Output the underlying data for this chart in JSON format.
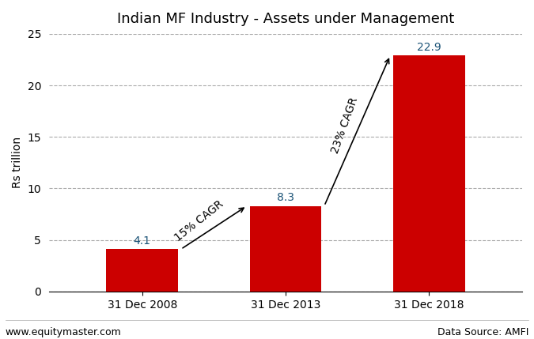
{
  "title": "Indian MF Industry - Assets under Management",
  "categories": [
    "31 Dec 2008",
    "31 Dec 2013",
    "31 Dec 2018"
  ],
  "values": [
    4.1,
    8.3,
    22.9
  ],
  "bar_color": "#cc0000",
  "ylabel": "Rs trillion",
  "ylim": [
    0,
    25
  ],
  "yticks": [
    0,
    5,
    10,
    15,
    20,
    25
  ],
  "bar_width": 0.5,
  "annotation1_text": "15% CAGR",
  "annotation2_text": "23% CAGR",
  "footer_left": "www.equitymaster.com",
  "footer_right": "Data Source: AMFI",
  "background_color": "#ffffff",
  "grid_color": "#aaaaaa",
  "title_fontsize": 13,
  "label_fontsize": 10,
  "tick_fontsize": 10,
  "value_fontsize": 10,
  "annot_fontsize": 10,
  "footer_fontsize": 9,
  "value_color": "#1a5276"
}
